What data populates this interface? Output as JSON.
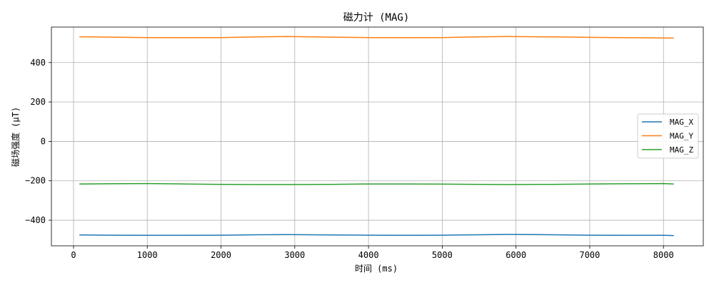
{
  "chart_data": {
    "type": "line",
    "title": "磁力计 (MAG)",
    "xlabel": "时间 (ms)",
    "ylabel": "磁场强度 (μT)",
    "xlim": [
      -300,
      8540
    ],
    "ylim": [
      -530,
      580
    ],
    "xticks": [
      0,
      1000,
      2000,
      3000,
      4000,
      5000,
      6000,
      7000,
      8000
    ],
    "yticks": [
      -400,
      -200,
      0,
      200,
      400
    ],
    "grid": true,
    "legend_position": "center-right",
    "x": [
      80,
      500,
      1000,
      1500,
      2000,
      2500,
      2900,
      3500,
      4000,
      4500,
      5000,
      5500,
      5900,
      6500,
      7000,
      7500,
      8000,
      8140
    ],
    "series": [
      {
        "name": "MAG_X",
        "color": "#1f77b4",
        "values": [
          -475,
          -476,
          -477,
          -477,
          -476,
          -474,
          -473,
          -475,
          -476,
          -477,
          -476,
          -474,
          -472,
          -474,
          -476,
          -477,
          -477,
          -478
        ]
      },
      {
        "name": "MAG_Y",
        "color": "#ff7f0e",
        "values": [
          531,
          529,
          527,
          526,
          527,
          530,
          532,
          529,
          527,
          526,
          527,
          530,
          532,
          530,
          528,
          526,
          525,
          524
        ]
      },
      {
        "name": "MAG_Z",
        "color": "#2ca02c",
        "values": [
          -216,
          -215,
          -214,
          -216,
          -218,
          -219,
          -219,
          -218,
          -216,
          -216,
          -217,
          -218,
          -219,
          -218,
          -216,
          -215,
          -214,
          -216
        ]
      }
    ]
  }
}
